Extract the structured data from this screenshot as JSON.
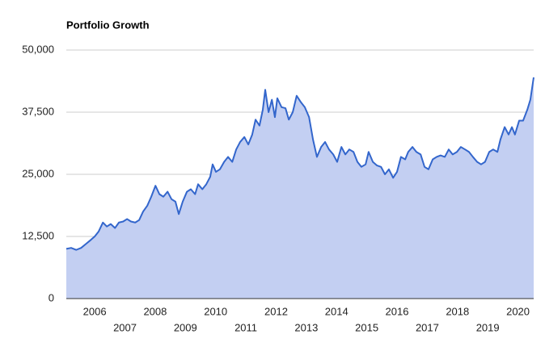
{
  "chart_data": {
    "type": "area",
    "title": "Portfolio Growth",
    "x": [
      2005.06,
      2005.22,
      2005.39,
      2005.55,
      2005.71,
      2005.87,
      2006.0,
      2006.13,
      2006.27,
      2006.4,
      2006.53,
      2006.67,
      2006.8,
      2006.94,
      2007.07,
      2007.2,
      2007.34,
      2007.47,
      2007.6,
      2007.74,
      2007.87,
      2008.01,
      2008.14,
      2008.27,
      2008.41,
      2008.54,
      2008.67,
      2008.78,
      2008.91,
      2009.05,
      2009.18,
      2009.32,
      2009.42,
      2009.56,
      2009.69,
      2009.82,
      2009.9,
      2010.01,
      2010.14,
      2010.28,
      2010.41,
      2010.55,
      2010.68,
      2010.81,
      2010.95,
      2011.08,
      2011.21,
      2011.32,
      2011.45,
      2011.56,
      2011.64,
      2011.75,
      2011.86,
      2011.96,
      2012.04,
      2012.18,
      2012.31,
      2012.42,
      2012.55,
      2012.68,
      2012.82,
      2012.95,
      2013.09,
      2013.22,
      2013.35,
      2013.49,
      2013.62,
      2013.75,
      2013.89,
      2014.02,
      2014.16,
      2014.29,
      2014.42,
      2014.56,
      2014.69,
      2014.82,
      2014.96,
      2015.06,
      2015.2,
      2015.33,
      2015.47,
      2015.6,
      2015.73,
      2015.87,
      2016.0,
      2016.13,
      2016.27,
      2016.37,
      2016.51,
      2016.64,
      2016.78,
      2016.91,
      2017.04,
      2017.18,
      2017.31,
      2017.44,
      2017.58,
      2017.71,
      2017.84,
      2017.98,
      2018.11,
      2018.25,
      2018.38,
      2018.51,
      2018.65,
      2018.78,
      2018.91,
      2019.05,
      2019.18,
      2019.32,
      2019.42,
      2019.56,
      2019.69,
      2019.8,
      2019.9,
      2020.04,
      2020.17,
      2020.31,
      2020.41,
      2020.52
    ],
    "values": [
      10000,
      10200,
      9800,
      10200,
      11000,
      11800,
      12500,
      13500,
      15300,
      14500,
      15000,
      14200,
      15300,
      15500,
      16000,
      15500,
      15300,
      15800,
      17500,
      18700,
      20500,
      22700,
      21000,
      20500,
      21500,
      20000,
      19500,
      17000,
      19500,
      21500,
      22000,
      21000,
      23000,
      22000,
      23000,
      24500,
      27000,
      25500,
      26000,
      27500,
      28500,
      27500,
      30000,
      31500,
      32500,
      31000,
      33000,
      36000,
      34800,
      38000,
      42000,
      37500,
      40000,
      36500,
      40300,
      38500,
      38300,
      36000,
      37500,
      40800,
      39500,
      38500,
      36500,
      32000,
      28500,
      30500,
      31500,
      30000,
      29000,
      27500,
      30500,
      29000,
      30000,
      29500,
      27500,
      26500,
      27000,
      29500,
      27500,
      26800,
      26500,
      25000,
      26000,
      24300,
      25500,
      28500,
      28000,
      29500,
      30500,
      29500,
      29000,
      26500,
      26000,
      28000,
      28500,
      28800,
      28500,
      30000,
      29000,
      29500,
      30500,
      30000,
      29500,
      28500,
      27500,
      27000,
      27500,
      29500,
      30000,
      29500,
      32000,
      34500,
      33000,
      34500,
      33000,
      35800,
      35800,
      38000,
      40000,
      44500
    ],
    "color": "#3366cc",
    "fill_color": "#c3cff2",
    "xlim": [
      2005.06,
      2020.52
    ],
    "xticks": [
      2006,
      2007,
      2008,
      2009,
      2010,
      2011,
      2012,
      2013,
      2014,
      2015,
      2016,
      2017,
      2018,
      2019,
      2020
    ],
    "ylim": [
      0,
      50000
    ],
    "yticks": [
      0,
      {
        "value": 12500,
        "label": "12,500"
      },
      {
        "value": 25000,
        "label": "25,000"
      },
      {
        "value": 37500,
        "label": "37,500"
      },
      {
        "value": 50000,
        "label": "50,000"
      }
    ],
    "grid": true
  }
}
